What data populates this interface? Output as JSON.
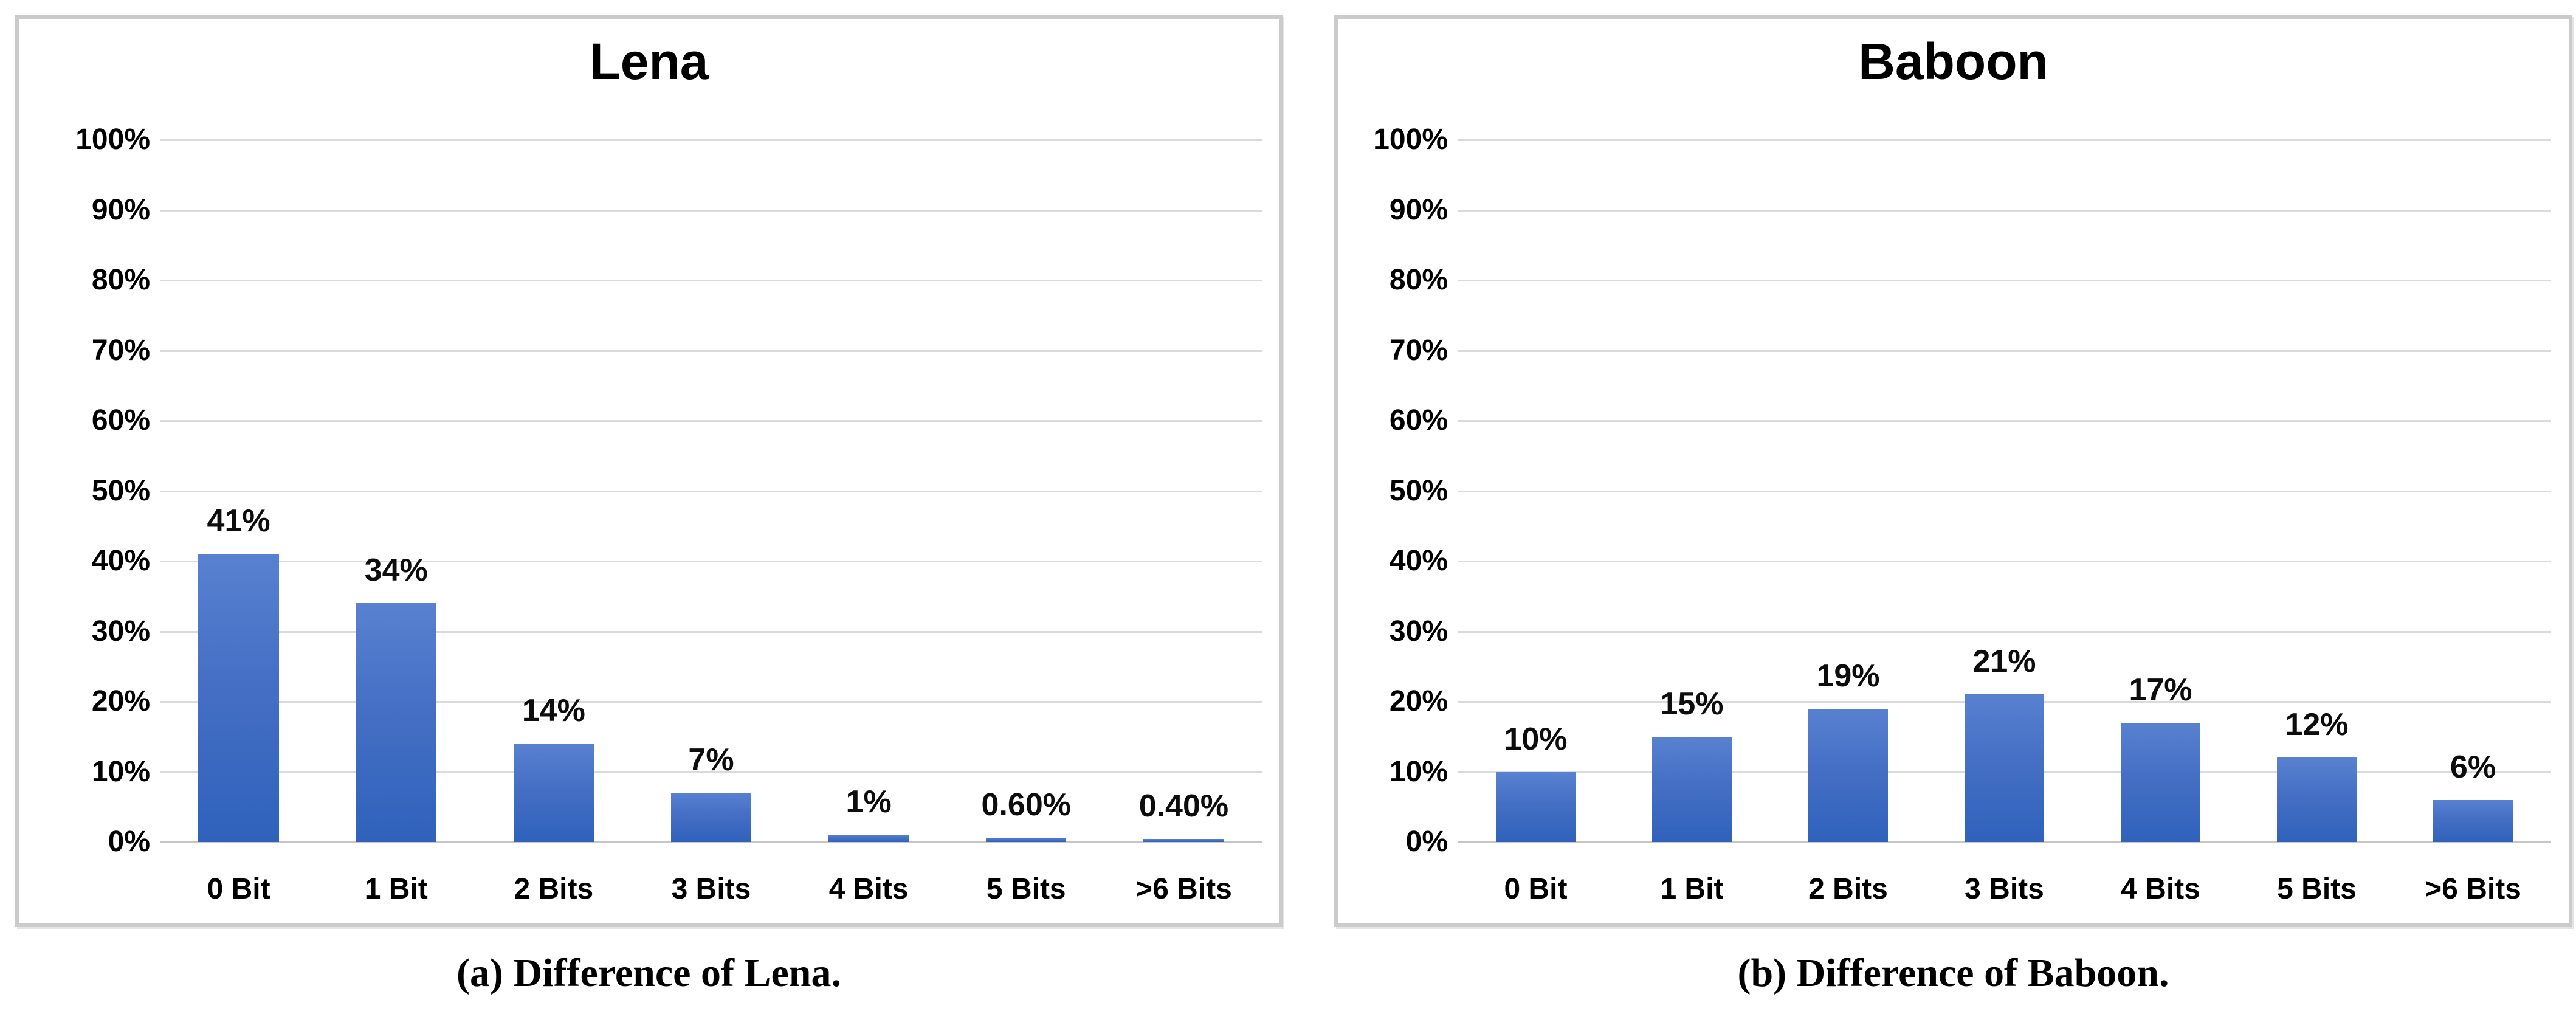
{
  "figure": {
    "captions": [
      {
        "label": "(a) Difference of Lena."
      },
      {
        "label": "(b) Difference of Baboon."
      }
    ]
  },
  "colors": {
    "bar_gradient_top": "#5881D1",
    "bar_gradient_bottom": "#2F62BC",
    "gridline": "#DADADA",
    "axis_line": "#C6C6C6",
    "panel_border": "#CBCBCB",
    "text": "#000000"
  },
  "chart_data": [
    {
      "type": "bar",
      "title": "Lena",
      "categories": [
        "0 Bit",
        "1 Bit",
        "2 Bits",
        "3 Bits",
        "4 Bits",
        "5 Bits",
        ">6 Bits"
      ],
      "values": [
        41,
        34,
        14,
        7,
        1,
        0.6,
        0.4
      ],
      "value_labels": [
        "41%",
        "34%",
        "14%",
        "7%",
        "1%",
        "0.60%",
        "0.40%"
      ],
      "y_ticks": [
        "100%",
        "90%",
        "80%",
        "70%",
        "60%",
        "50%",
        "40%",
        "30%",
        "20%",
        "10%",
        "0%"
      ],
      "xlabel": "",
      "ylabel": "",
      "ylim": [
        0,
        100
      ],
      "grid": true,
      "legend_position": "none"
    },
    {
      "type": "bar",
      "title": "Baboon",
      "categories": [
        "0 Bit",
        "1 Bit",
        "2 Bits",
        "3 Bits",
        "4 Bits",
        "5 Bits",
        ">6 Bits"
      ],
      "values": [
        10,
        15,
        19,
        21,
        17,
        12,
        6
      ],
      "value_labels": [
        "10%",
        "15%",
        "19%",
        "21%",
        "17%",
        "12%",
        "6%"
      ],
      "y_ticks": [
        "100%",
        "90%",
        "80%",
        "70%",
        "60%",
        "50%",
        "40%",
        "30%",
        "20%",
        "10%",
        "0%"
      ],
      "xlabel": "",
      "ylabel": "",
      "ylim": [
        0,
        100
      ],
      "grid": true,
      "legend_position": "none"
    }
  ]
}
